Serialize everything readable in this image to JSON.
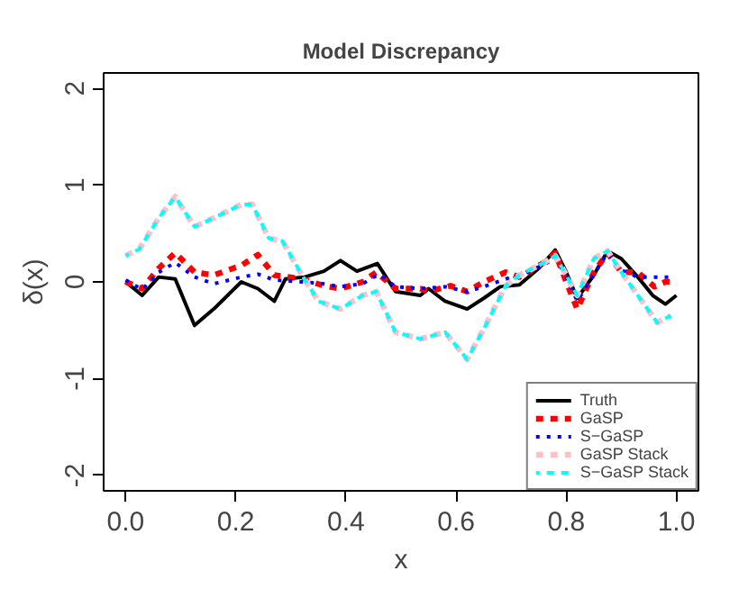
{
  "chart_data": {
    "type": "line",
    "title": "Model Discrepancy",
    "xlabel": "x",
    "ylabel": "δ(x)",
    "xlim": [
      -0.04,
      1.04
    ],
    "ylim": [
      -2.16,
      2.16
    ],
    "xticks": [
      {
        "value": 0,
        "label": "0.0"
      },
      {
        "value": 0.2,
        "label": "0.2"
      },
      {
        "value": 0.4,
        "label": "0.4"
      },
      {
        "value": 0.6,
        "label": "0.6"
      },
      {
        "value": 0.8,
        "label": "0.8"
      },
      {
        "value": 1,
        "label": "1.0"
      }
    ],
    "yticks": [
      -2,
      -1,
      0,
      1,
      2
    ],
    "grid": false,
    "legend": "bottom right",
    "series": [
      {
        "name": "Truth",
        "color": "#000000",
        "line_style": "solid",
        "x": [
          0,
          0.03,
          0.06,
          0.09,
          0.125,
          0.16,
          0.21,
          0.24,
          0.27,
          0.29,
          0.325,
          0.36,
          0.39,
          0.42,
          0.457,
          0.49,
          0.535,
          0.55,
          0.58,
          0.62,
          0.65,
          0.68,
          0.715,
          0.75,
          0.78,
          0.8,
          0.82,
          0.85,
          0.875,
          0.9,
          0.93,
          0.957,
          0.98,
          1.0
        ],
        "values": [
          0,
          -0.14,
          0.05,
          0.03,
          -0.45,
          -0.28,
          0,
          -0.07,
          -0.2,
          0.03,
          0.05,
          0.11,
          0.22,
          0.11,
          0.19,
          -0.1,
          -0.14,
          -0.07,
          -0.2,
          -0.28,
          -0.17,
          -0.05,
          -0.03,
          0.14,
          0.33,
          0.1,
          -0.17,
          0.07,
          0.32,
          0.24,
          0.05,
          -0.14,
          -0.23,
          -0.14
        ]
      },
      {
        "name": "GaSP",
        "color": "#ff0000",
        "line_style": "dashed",
        "x": [
          0,
          0.03,
          0.06,
          0.09,
          0.125,
          0.16,
          0.21,
          0.24,
          0.27,
          0.32,
          0.36,
          0.39,
          0.43,
          0.455,
          0.49,
          0.535,
          0.55,
          0.59,
          0.62,
          0.65,
          0.69,
          0.715,
          0.76,
          0.78,
          0.8,
          0.82,
          0.85,
          0.875,
          0.9,
          0.93,
          0.96,
          0.98,
          0.99
        ],
        "values": [
          0,
          -0.07,
          0.14,
          0.3,
          0.1,
          0.07,
          0.17,
          0.28,
          0.07,
          0.03,
          -0.04,
          -0.07,
          0,
          0.1,
          -0.07,
          -0.07,
          -0.1,
          -0.04,
          -0.1,
          0,
          0.1,
          0.05,
          0.2,
          0.3,
          0,
          -0.28,
          0.1,
          0.3,
          0.1,
          0.1,
          -0.05,
          0,
          0
        ]
      },
      {
        "name": "S−GaSP",
        "color": "#0000ff",
        "line_style": "dotted",
        "x": [
          0,
          0.03,
          0.06,
          0.09,
          0.125,
          0.16,
          0.21,
          0.24,
          0.27,
          0.32,
          0.36,
          0.39,
          0.43,
          0.46,
          0.49,
          0.535,
          0.58,
          0.62,
          0.65,
          0.69,
          0.72,
          0.76,
          0.78,
          0.8,
          0.82,
          0.85,
          0.875,
          0.9,
          0.93,
          0.96,
          0.99
        ],
        "values": [
          0.02,
          -0.08,
          0.1,
          0.2,
          0.05,
          -0.02,
          0.05,
          0.08,
          0.02,
          0,
          -0.02,
          -0.05,
          -0.02,
          0.08,
          -0.05,
          -0.07,
          -0.05,
          -0.1,
          -0.05,
          0.03,
          0.08,
          0.18,
          0.25,
          0.05,
          -0.2,
          0.08,
          0.3,
          0.12,
          0.05,
          0.05,
          0.05
        ]
      },
      {
        "name": "GaSP Stack",
        "color": "#ffc0cb",
        "line_style": "dashed",
        "x": [
          0,
          0.025,
          0.06,
          0.09,
          0.125,
          0.16,
          0.21,
          0.23,
          0.26,
          0.285,
          0.32,
          0.35,
          0.39,
          0.43,
          0.455,
          0.49,
          0.535,
          0.58,
          0.62,
          0.65,
          0.69,
          0.715,
          0.76,
          0.78,
          0.8,
          0.82,
          0.85,
          0.875,
          0.9,
          0.93,
          0.965,
          0.99
        ],
        "values": [
          0.27,
          0.34,
          0.66,
          0.88,
          0.57,
          0.66,
          0.8,
          0.8,
          0.45,
          0.42,
          0.07,
          -0.2,
          -0.28,
          -0.14,
          -0.1,
          -0.52,
          -0.59,
          -0.52,
          -0.8,
          -0.49,
          -0.04,
          0.07,
          0.2,
          0.27,
          0.07,
          -0.14,
          0.24,
          0.32,
          0.1,
          -0.14,
          -0.42,
          -0.35
        ]
      },
      {
        "name": "S−GaSP Stack",
        "color": "#00ffff",
        "line_style": "dashed",
        "x": [
          0,
          0.025,
          0.06,
          0.09,
          0.125,
          0.16,
          0.21,
          0.23,
          0.26,
          0.285,
          0.32,
          0.35,
          0.39,
          0.43,
          0.455,
          0.49,
          0.535,
          0.58,
          0.62,
          0.65,
          0.69,
          0.715,
          0.76,
          0.78,
          0.8,
          0.82,
          0.85,
          0.875,
          0.9,
          0.93,
          0.965,
          0.99
        ],
        "values": [
          0.27,
          0.34,
          0.66,
          0.88,
          0.57,
          0.66,
          0.8,
          0.8,
          0.45,
          0.42,
          0.07,
          -0.2,
          -0.28,
          -0.14,
          -0.1,
          -0.52,
          -0.59,
          -0.52,
          -0.8,
          -0.49,
          -0.04,
          0.07,
          0.2,
          0.27,
          0.07,
          -0.14,
          0.24,
          0.32,
          0.1,
          -0.14,
          -0.42,
          -0.35
        ]
      }
    ]
  }
}
